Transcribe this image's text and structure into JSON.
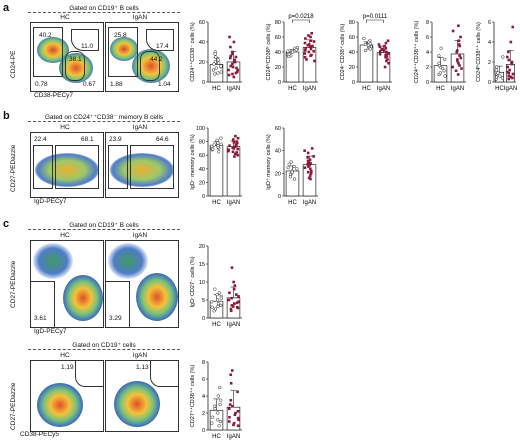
{
  "panels": {
    "a": {
      "letter": "a",
      "gate_title": "Gated on CD19⁺ B cells",
      "hc": "HC",
      "igan": "IgAN",
      "x_axis": "CD38-PECy7",
      "y_axis": "CD24-PE",
      "hc_nums": [
        "40.2",
        "11.0",
        "38.1",
        "0.78",
        "0.67"
      ],
      "igan_nums": [
        "25.8",
        "17.4",
        "44.2",
        "1.88",
        "1.04"
      ]
    },
    "b": {
      "letter": "b",
      "gate_title": "Gated on CD24⁺⁺CD38⁻ memory B cells",
      "hc": "HC",
      "igan": "IgAN",
      "x_axis": "IgD-PECy7",
      "y_axis": "CD27-PEDazzle",
      "hc_nums": [
        "22.4",
        "68.1"
      ],
      "igan_nums": [
        "23.9",
        "64.6"
      ]
    },
    "c1": {
      "letter": "c",
      "gate_title": "Gated on CD19⁺ B cells",
      "hc": "HC",
      "igan": "IgAN",
      "x_axis": "IgD-PECy7",
      "y_axis": "CD27-PEDazzle",
      "hc_nums": [
        "3.61"
      ],
      "igan_nums": [
        "3.29"
      ]
    },
    "c2": {
      "gate_title": "Gated on CD19⁺ cells",
      "hc": "HC",
      "igan": "IgAN",
      "x_axis": "CD38-PECy5",
      "y_axis": "CD27-PEDazzle",
      "hc_nums": [
        "1.19"
      ],
      "igan_nums": [
        "1.13"
      ]
    }
  },
  "chart_data": [
    {
      "type": "scatter",
      "ylabel": "CD24⁺⁺CD38⁻ cells (%)",
      "categories": [
        "HC",
        "IgAN"
      ],
      "ylim": [
        0,
        60
      ],
      "ticks": [
        "0",
        "20",
        "40",
        "60"
      ],
      "annotation": "",
      "series": [
        {
          "name": "HC",
          "values": [
            8,
            12,
            15,
            20,
            22,
            18,
            10,
            25,
            30,
            14,
            16,
            19,
            28,
            9
          ]
        },
        {
          "name": "IgAN",
          "values": [
            5,
            8,
            12,
            15,
            18,
            20,
            22,
            25,
            28,
            30,
            10,
            14,
            16,
            24,
            35,
            40,
            45,
            12,
            9,
            7,
            20,
            26
          ]
        }
      ]
    },
    {
      "type": "scatter",
      "ylabel": "CD24ʰⁱCD38ʰⁱ cells (%)",
      "categories": [
        "HC",
        "IgAN"
      ],
      "ylim": [
        0,
        80
      ],
      "ticks": [
        "0",
        "20",
        "40",
        "60",
        "80"
      ],
      "annotation": "p=0.0218",
      "series": [
        {
          "name": "HC",
          "values": [
            38,
            40,
            42,
            36,
            45,
            35,
            44,
            39,
            41,
            37,
            43,
            46,
            34,
            40
          ]
        },
        {
          "name": "IgAN",
          "values": [
            30,
            35,
            40,
            45,
            50,
            55,
            60,
            62,
            38,
            42,
            48,
            52,
            28,
            33,
            58,
            65,
            44,
            47,
            36,
            54,
            41,
            49
          ]
        }
      ]
    },
    {
      "type": "scatter",
      "ylabel": "CD24⁻CD38⁺ cells (%)",
      "categories": [
        "HC",
        "IgAN"
      ],
      "ylim": [
        0,
        80
      ],
      "ticks": [
        "0",
        "20",
        "40",
        "60",
        "80"
      ],
      "annotation": "p=0.0111",
      "series": [
        {
          "name": "HC",
          "values": [
            45,
            50,
            48,
            52,
            55,
            42,
            47,
            53,
            49,
            51,
            46,
            58,
            44,
            50
          ]
        },
        {
          "name": "IgAN",
          "values": [
            30,
            35,
            38,
            40,
            42,
            45,
            48,
            50,
            33,
            28,
            36,
            44,
            52,
            55,
            25,
            39,
            41,
            47,
            20,
            34,
            37,
            43
          ]
        }
      ]
    },
    {
      "type": "scatter",
      "ylabel": "CD24⁺⁺CD38⁺⁺ cells (%)",
      "categories": [
        "HC",
        "IgAN"
      ],
      "ylim": [
        0,
        8
      ],
      "ticks": [
        "0",
        "2",
        "4",
        "6",
        "8"
      ],
      "annotation": "",
      "series": [
        {
          "name": "HC",
          "values": [
            1,
            1.5,
            2,
            2.5,
            3,
            1.2,
            0.8,
            2.2,
            3.5,
            4.5,
            1.8
          ]
        },
        {
          "name": "IgAN",
          "values": [
            1,
            2,
            3,
            4,
            5,
            6,
            2.5,
            3.5,
            1.5,
            4.2,
            5.5,
            7.5,
            2.8,
            3.2,
            1.8,
            6.8,
            4.8,
            2.2
          ]
        }
      ]
    },
    {
      "type": "scatter",
      "ylabel": "CD24ʰⁱCD38⁺⁺ cells (%)",
      "categories": [
        "HC",
        "IgAN"
      ],
      "ylim": [
        0,
        6
      ],
      "ticks": [
        "0",
        "2",
        "4",
        "6"
      ],
      "annotation": "",
      "series": [
        {
          "name": "HC",
          "values": [
            0.3,
            0.5,
            0.8,
            1,
            1.2,
            0.6,
            0.4,
            1.5,
            2.5,
            0.9
          ]
        },
        {
          "name": "IgAN",
          "values": [
            0.3,
            0.6,
            1,
            1.5,
            2,
            0.8,
            0.5,
            1.2,
            2.5,
            3,
            4,
            5.5,
            0.9,
            1.8,
            0.4,
            2.2
          ]
        }
      ]
    },
    {
      "type": "scatter",
      "ylabel": "IgD⁻ memory cells (%)",
      "categories": [
        "HC",
        "IgAN"
      ],
      "ylim": [
        0,
        100
      ],
      "ticks": [
        "0",
        "20",
        "40",
        "60",
        "80",
        "100"
      ],
      "annotation": "",
      "series": [
        {
          "name": "HC",
          "values": [
            70,
            75,
            80,
            72,
            68,
            78,
            85,
            65,
            74,
            76,
            82,
            71,
            69,
            73
          ]
        },
        {
          "name": "IgAN",
          "values": [
            60,
            65,
            70,
            75,
            80,
            85,
            72,
            68,
            62,
            78,
            82,
            74,
            66,
            58,
            88,
            71,
            76,
            64,
            79,
            83,
            69,
            73
          ]
        }
      ]
    },
    {
      "type": "scatter",
      "ylabel": "IgD⁺ memory cells (%)",
      "categories": [
        "HC",
        "IgAN"
      ],
      "ylim": [
        0,
        60
      ],
      "ticks": [
        "0",
        "20",
        "40",
        "60"
      ],
      "annotation": "",
      "series": [
        {
          "name": "HC",
          "values": [
            20,
            22,
            25,
            18,
            28,
            15,
            24,
            30,
            19,
            26,
            21,
            17
          ]
        },
        {
          "name": "IgAN",
          "values": [
            15,
            20,
            25,
            30,
            35,
            40,
            18,
            22,
            28,
            32,
            26,
            38,
            42,
            16,
            24,
            29,
            34,
            21,
            27,
            31
          ]
        }
      ]
    },
    {
      "type": "scatter",
      "ylabel": "IgD⁻CD27⁻ cells (%)",
      "categories": [
        "HC",
        "IgAN"
      ],
      "ylim": [
        0,
        20
      ],
      "ticks": [
        "0",
        "5",
        "10",
        "15",
        "20"
      ],
      "annotation": "",
      "series": [
        {
          "name": "HC",
          "values": [
            3,
            4,
            5,
            6,
            2,
            7,
            3.5,
            4.5,
            5.5,
            8,
            2.5,
            6.5,
            3.2
          ]
        },
        {
          "name": "IgAN",
          "values": [
            2,
            3,
            4,
            5,
            6,
            7,
            8,
            3.5,
            4.5,
            2.5,
            5.5,
            9,
            10,
            14,
            3.2,
            6.5,
            4.2,
            2.8
          ]
        }
      ]
    },
    {
      "type": "scatter",
      "ylabel": "CD27⁺⁺CD38⁺⁺ cells (%)",
      "categories": [
        "HC",
        "IgAN"
      ],
      "ylim": [
        0,
        8
      ],
      "ticks": [
        "0",
        "2",
        "4",
        "6",
        "8"
      ],
      "annotation": "",
      "series": [
        {
          "name": "HC",
          "values": [
            0.5,
            1,
            1.5,
            2,
            2.5,
            3,
            3.5,
            4,
            1.2,
            0.8,
            2.8,
            5
          ]
        },
        {
          "name": "IgAN",
          "values": [
            0.5,
            1,
            1.5,
            2,
            2.5,
            3,
            0.8,
            1.2,
            1.8,
            2.2,
            3.5,
            4.5,
            5.5,
            6.5,
            7,
            1.4,
            2.8,
            0.6
          ]
        }
      ]
    }
  ],
  "colors": {
    "bar": "#ffffff",
    "hc_marker": "#ffffff",
    "igan_marker": "#8b1a3a",
    "axis": "#222222"
  }
}
